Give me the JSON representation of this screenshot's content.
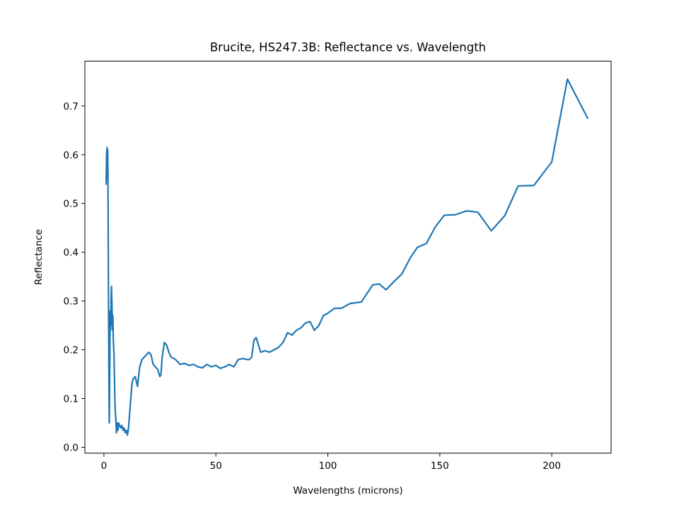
{
  "chart_data": {
    "type": "line",
    "title": "Brucite, HS247.3B: Reflectance vs. Wavelength",
    "xlabel": "Wavelengths (microns)",
    "ylabel": "Reflectance",
    "xlim": [
      -8.5,
      226.5
    ],
    "ylim": [
      -0.012,
      0.792
    ],
    "xticks": [
      0,
      50,
      100,
      150,
      200
    ],
    "xtick_labels": [
      "0",
      "50",
      "100",
      "150",
      "200"
    ],
    "yticks": [
      0.0,
      0.1,
      0.2,
      0.3,
      0.4,
      0.5,
      0.6,
      0.7
    ],
    "ytick_labels": [
      "0.0",
      "0.1",
      "0.2",
      "0.3",
      "0.4",
      "0.5",
      "0.6",
      "0.7"
    ],
    "grid": false,
    "line_color": "#1f77b4",
    "series": [
      {
        "x": [
          1.0,
          1.2,
          1.4,
          1.5,
          1.6,
          1.7,
          1.8,
          1.9,
          2.0,
          2.1,
          2.2,
          2.3,
          2.4,
          2.5,
          2.6,
          2.7,
          2.8,
          2.9,
          3.0,
          3.1,
          3.2,
          3.4,
          3.6,
          3.8,
          4.0,
          4.2,
          4.5,
          4.8,
          5.0,
          5.3,
          5.6,
          6.0,
          6.3,
          6.6,
          7.0,
          7.5,
          8.0,
          8.5,
          9.0,
          9.5,
          10.0,
          10.5,
          11.0,
          11.5,
          12.0,
          12.5,
          13.0,
          14.0,
          15.0,
          16.0,
          17.0,
          18.0,
          19.0,
          20.0,
          21.0,
          22.0,
          23.0,
          24.0,
          25.0,
          25.5,
          26.0,
          27.0,
          28.0,
          29.0,
          30.0,
          32.0,
          34.0,
          36.0,
          38.0,
          40.0,
          42.0,
          44.0,
          46.0,
          48.0,
          50.0,
          52.0,
          54.0,
          56.0,
          58.0,
          60.0,
          62.0,
          64.0,
          65.0,
          66.0,
          67.0,
          68.0,
          70.0,
          72.0,
          74.0,
          76.0,
          78.0,
          80.0,
          82.0,
          84.0,
          86.0,
          88.0,
          90.0,
          92.0,
          94.0,
          96.0,
          98.0,
          100.0,
          103.0,
          106.0,
          110.0,
          115.0,
          120.0,
          123.0,
          126.0,
          130.0,
          133.0,
          137.0,
          140.0,
          144.0,
          148.0,
          152.0,
          157.0,
          162.0,
          167.0,
          173.0,
          179.0,
          185.0,
          192.0,
          200.0,
          207.0,
          216.0
        ],
        "y": [
          0.54,
          0.6,
          0.615,
          0.55,
          0.59,
          0.61,
          0.56,
          0.47,
          0.35,
          0.26,
          0.18,
          0.1,
          0.05,
          0.1,
          0.15,
          0.22,
          0.28,
          0.24,
          0.27,
          0.25,
          0.3,
          0.33,
          0.29,
          0.24,
          0.27,
          0.22,
          0.19,
          0.12,
          0.08,
          0.06,
          0.03,
          0.05,
          0.035,
          0.05,
          0.045,
          0.04,
          0.045,
          0.035,
          0.04,
          0.03,
          0.035,
          0.025,
          0.04,
          0.07,
          0.1,
          0.13,
          0.14,
          0.145,
          0.125,
          0.165,
          0.18,
          0.185,
          0.19,
          0.195,
          0.19,
          0.17,
          0.165,
          0.16,
          0.145,
          0.15,
          0.185,
          0.215,
          0.21,
          0.195,
          0.185,
          0.18,
          0.17,
          0.172,
          0.168,
          0.17,
          0.165,
          0.163,
          0.17,
          0.165,
          0.168,
          0.162,
          0.165,
          0.17,
          0.165,
          0.18,
          0.182,
          0.18,
          0.18,
          0.185,
          0.22,
          0.225,
          0.195,
          0.198,
          0.195,
          0.2,
          0.205,
          0.215,
          0.235,
          0.23,
          0.24,
          0.245,
          0.255,
          0.258,
          0.24,
          0.25,
          0.27,
          0.275,
          0.285,
          0.285,
          0.295,
          0.298,
          0.333,
          0.335,
          0.323,
          0.342,
          0.355,
          0.39,
          0.41,
          0.418,
          0.452,
          0.476,
          0.477,
          0.485,
          0.482,
          0.444,
          0.475,
          0.536,
          0.537,
          0.585,
          0.755,
          0.675
        ]
      }
    ]
  }
}
